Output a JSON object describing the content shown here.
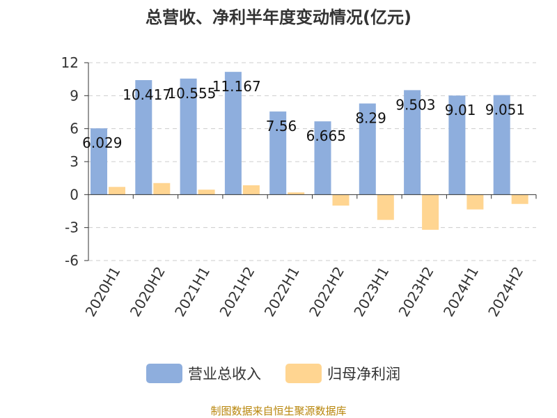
{
  "chart_data": {
    "type": "bar",
    "title": "总营收、净利半年度变动情况(亿元)",
    "categories": [
      "2020H1",
      "2020H2",
      "2021H1",
      "2021H2",
      "2022H1",
      "2022H2",
      "2023H1",
      "2023H2",
      "2024H1",
      "2024H2"
    ],
    "series": [
      {
        "name": "营业总收入",
        "values": [
          6.029,
          10.417,
          10.555,
          11.167,
          7.56,
          6.665,
          8.29,
          9.503,
          9.01,
          9.051
        ],
        "color": "#8eaedd",
        "labels": [
          "6.029",
          "10.417",
          "10.555",
          "11.167",
          "7.56",
          "6.665",
          "8.29",
          "9.503",
          "9.01",
          "9.051"
        ]
      },
      {
        "name": "归母净利润",
        "values": [
          0.7,
          1.05,
          0.45,
          0.85,
          0.2,
          -1.0,
          -2.3,
          -3.2,
          -1.35,
          -0.85
        ],
        "color": "#ffd591"
      }
    ],
    "yticks": [
      12,
      9,
      6,
      3,
      0,
      -3,
      -6
    ],
    "ylim": [
      -6,
      12
    ],
    "grid": true,
    "legend_position": "bottom",
    "xlabel": "",
    "ylabel": ""
  },
  "footer": {
    "source_text": "制图数据来自恒生聚源数据库"
  }
}
